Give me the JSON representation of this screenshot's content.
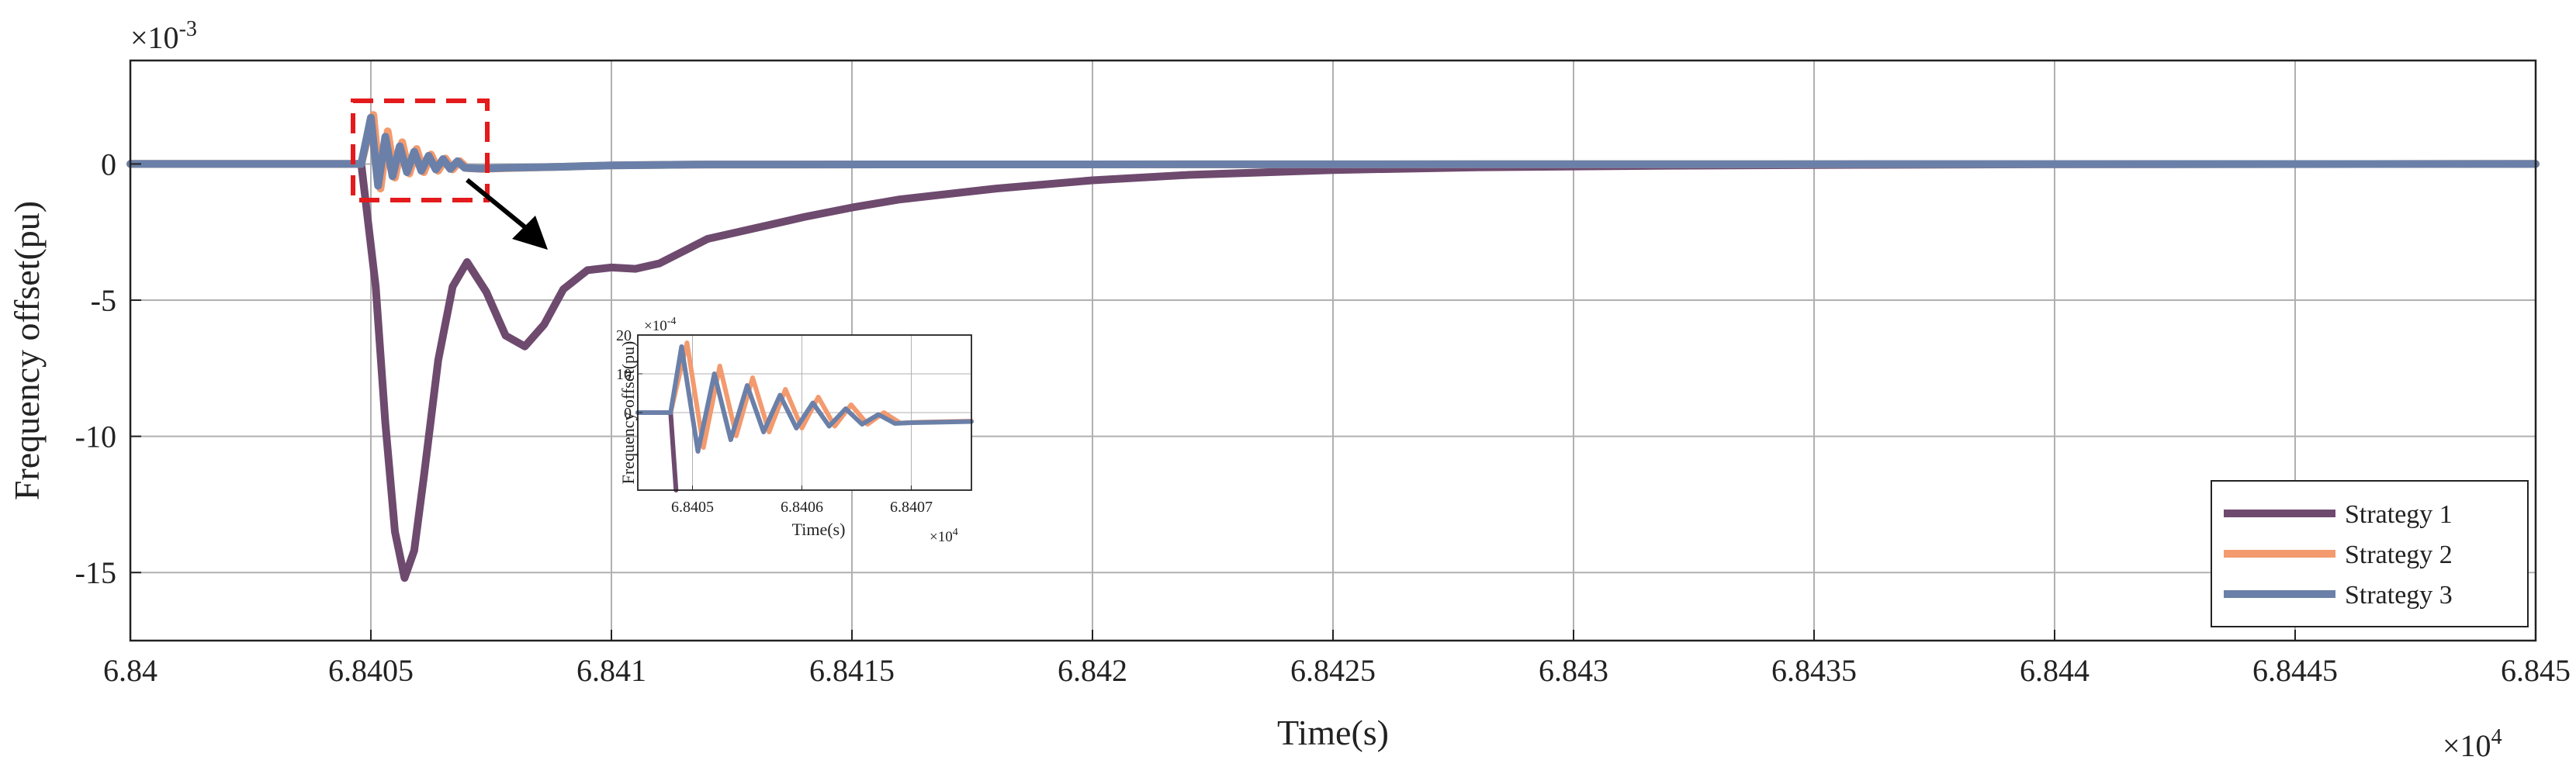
{
  "chart_data": [
    {
      "type": "line",
      "xlabel": "Time(s)",
      "ylabel": "Frequency offset(pu)",
      "x_multiplier_label": "×10^4",
      "y_multiplier_label": "×10^-3",
      "xlim": [
        6.84,
        6.845
      ],
      "ylim": [
        -17.5,
        3.8
      ],
      "x_ticks": [
        "6.84",
        "6.8405",
        "6.841",
        "6.8415",
        "6.842",
        "6.8425",
        "6.843",
        "6.8435",
        "6.844",
        "6.8445",
        "6.845"
      ],
      "x_tick_values": [
        6.84,
        6.8405,
        6.841,
        6.8415,
        6.842,
        6.8425,
        6.843,
        6.8435,
        6.844,
        6.8445,
        6.845
      ],
      "y_ticks": [
        "0",
        "-5",
        "-10",
        "-15"
      ],
      "y_tick_values": [
        0,
        -5,
        -10,
        -15
      ],
      "grid": true,
      "legend_position": "bottom-right",
      "series": [
        {
          "name": "Strategy 1",
          "color": "#6e4a6e",
          "x": [
            6.84,
            6.84048,
            6.84051,
            6.84053,
            6.84055,
            6.84057,
            6.84059,
            6.84061,
            6.84064,
            6.84067,
            6.8407,
            6.84074,
            6.84078,
            6.84082,
            6.84086,
            6.8409,
            6.84095,
            6.841,
            6.84105,
            6.8411,
            6.84115,
            6.8412,
            6.8413,
            6.8414,
            6.8415,
            6.8416,
            6.8418,
            6.842,
            6.8422,
            6.8425,
            6.8428,
            6.8432,
            6.8436,
            6.844,
            6.845
          ],
          "y": [
            0,
            0,
            -4.5,
            -9.5,
            -13.5,
            -15.2,
            -14.2,
            -11.5,
            -7.2,
            -4.5,
            -3.6,
            -4.7,
            -6.3,
            -6.7,
            -5.9,
            -4.6,
            -3.9,
            -3.8,
            -3.85,
            -3.65,
            -3.2,
            -2.75,
            -2.35,
            -1.95,
            -1.6,
            -1.3,
            -0.9,
            -0.6,
            -0.4,
            -0.22,
            -0.12,
            -0.06,
            -0.03,
            -0.01,
            0
          ]
        },
        {
          "name": "Strategy 2",
          "color": "#f39a6e",
          "x": [
            6.84,
            6.84048,
            6.840505,
            6.84052,
            6.840535,
            6.84055,
            6.840565,
            6.84058,
            6.840595,
            6.84061,
            6.840625,
            6.84064,
            6.840655,
            6.84067,
            6.840685,
            6.8407,
            6.84073,
            6.84078,
            6.8409,
            6.841,
            6.8412,
            6.845
          ],
          "y": [
            0,
            0,
            1.8,
            -0.9,
            1.2,
            -0.5,
            0.8,
            -0.35,
            0.55,
            -0.3,
            0.35,
            -0.25,
            0.2,
            -0.2,
            0.1,
            -0.15,
            -0.18,
            -0.15,
            -0.1,
            -0.05,
            -0.02,
            0
          ]
        },
        {
          "name": "Strategy 3",
          "color": "#6b80a8",
          "x": [
            6.84,
            6.84048,
            6.8405,
            6.840515,
            6.84053,
            6.840545,
            6.84056,
            6.840575,
            6.84059,
            6.840605,
            6.84062,
            6.840635,
            6.84065,
            6.840665,
            6.84068,
            6.840695,
            6.84073,
            6.84078,
            6.8409,
            6.841,
            6.8412,
            6.845
          ],
          "y": [
            0,
            0,
            1.7,
            -0.8,
            1.0,
            -0.45,
            0.65,
            -0.3,
            0.45,
            -0.25,
            0.3,
            -0.2,
            0.18,
            -0.18,
            0.1,
            -0.14,
            -0.17,
            -0.14,
            -0.1,
            -0.05,
            -0.02,
            0
          ]
        }
      ]
    },
    {
      "type": "line",
      "xlabel": "Time(s)",
      "ylabel": "Frequency offset(pu)",
      "x_multiplier_label": "×10^4",
      "y_multiplier_label": "×10^-4",
      "xlim": [
        6.84045,
        6.840755
      ],
      "ylim": [
        -20,
        20
      ],
      "x_ticks": [
        "6.8405",
        "6.8406",
        "6.8407"
      ],
      "x_tick_values": [
        6.8405,
        6.8406,
        6.8407
      ],
      "y_ticks": [
        "20",
        "10",
        "0"
      ],
      "y_tick_values": [
        20,
        10,
        0
      ],
      "grid": true,
      "series": [
        {
          "name": "Strategy 1",
          "color": "#6e4a6e",
          "x": [
            6.84045,
            6.84048,
            6.840485
          ],
          "y": [
            0,
            0,
            -20
          ]
        },
        {
          "name": "Strategy 2",
          "color": "#f39a6e",
          "x": [
            6.84045,
            6.84048,
            6.840495,
            6.84051,
            6.840525,
            6.84054,
            6.840555,
            6.84057,
            6.840585,
            6.8406,
            6.840615,
            6.84063,
            6.840645,
            6.84066,
            6.840675,
            6.84069,
            6.840705,
            6.84072,
            6.840755
          ],
          "y": [
            0,
            0,
            18,
            -9,
            12,
            -6,
            9,
            -5,
            6,
            -4,
            4,
            -3.5,
            2,
            -3,
            0,
            -2.7,
            -2.5,
            -2.4,
            -2.2
          ]
        },
        {
          "name": "Strategy 3",
          "color": "#6b80a8",
          "x": [
            6.84045,
            6.84048,
            6.84049,
            6.840505,
            6.84052,
            6.840535,
            6.84055,
            6.840565,
            6.84058,
            6.840595,
            6.84061,
            6.840625,
            6.84064,
            6.840655,
            6.84067,
            6.840685,
            6.8407,
            6.84072,
            6.840755
          ],
          "y": [
            0,
            0,
            17,
            -10,
            10,
            -7,
            7,
            -5,
            4.5,
            -4,
            2.5,
            -3.5,
            1,
            -3,
            -0.5,
            -2.8,
            -2.6,
            -2.5,
            -2.3
          ]
        }
      ]
    }
  ],
  "colors": {
    "zoom_box": "#e41a1c",
    "arrow": "#000000",
    "grid": "#b0b0b0",
    "axis": "#222222"
  }
}
